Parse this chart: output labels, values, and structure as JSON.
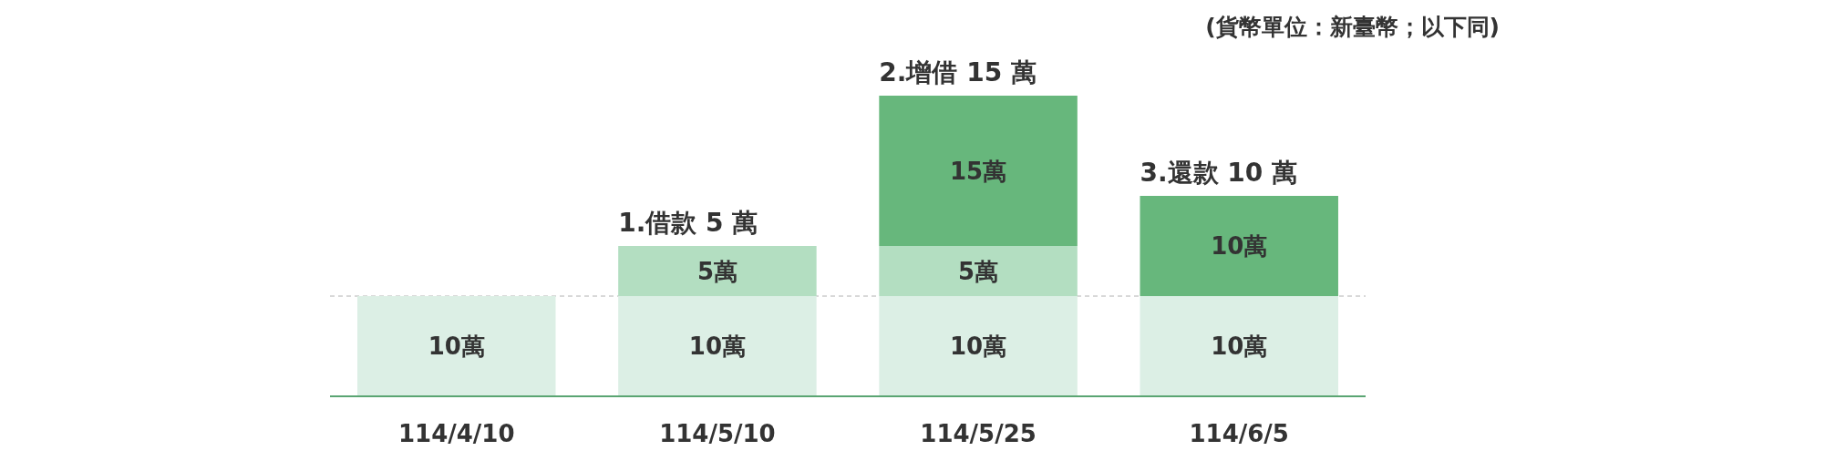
{
  "chart_data": {
    "type": "bar",
    "stacked": true,
    "categories": [
      "114/4/10",
      "114/5/10",
      "114/5/25",
      "114/6/5"
    ],
    "series": [
      {
        "color": "#dcefe5",
        "values": [
          10,
          10,
          10,
          10
        ],
        "value_labels": [
          "10萬",
          "10萬",
          "10萬",
          "10萬"
        ]
      },
      {
        "color": "#b3dec1",
        "values": [
          null,
          5,
          5,
          null
        ],
        "value_labels": [
          null,
          "5萬",
          "5萬",
          null
        ]
      },
      {
        "color": "#67b77c",
        "values": [
          null,
          null,
          15,
          10
        ],
        "value_labels": [
          null,
          null,
          "15萬",
          "10萬"
        ]
      }
    ],
    "ref_lines": [
      {
        "axis": "y",
        "value": 10,
        "color": "#cccccc",
        "line_style": "dashed"
      }
    ],
    "annotations": [
      "(貨幣單位：新臺幣；以下同)",
      {
        "text": "1.借款 5 萬",
        "x": "114/5/10",
        "y": 15
      },
      {
        "text": "2.增借 15 萬",
        "x": "114/5/25",
        "y": 30
      },
      {
        "text": "3.還款 10 萬",
        "x": "114/6/5",
        "y": 20
      }
    ]
  }
}
